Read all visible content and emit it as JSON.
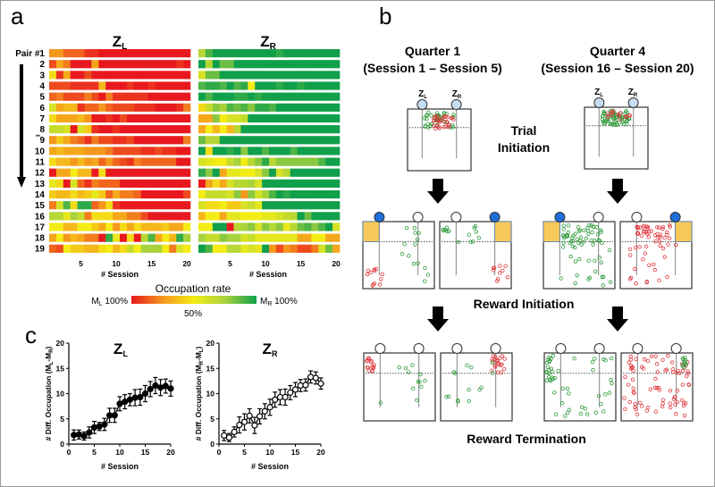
{
  "figure": {
    "panel_a": {
      "letter": "a",
      "left_title": {
        "main": "Z",
        "sub": "L"
      },
      "right_title": {
        "main": "Z",
        "sub": "R"
      },
      "row_labels": [
        "Pair #1",
        "2",
        "3",
        "4",
        "5",
        "6",
        "7",
        "8",
        "9",
        "10",
        "11",
        "12",
        "13",
        "14",
        "15",
        "16",
        "17",
        "18",
        "19"
      ],
      "row8_marker": "**",
      "xlabel": "# Session",
      "xticks": [
        "5",
        "10",
        "15",
        "20"
      ],
      "colorbar": {
        "title": "Occupation rate",
        "left": {
          "main": "M",
          "sub": "L",
          "rest": " 100%"
        },
        "right": {
          "main": "M",
          "sub": "R",
          "rest": " 100%"
        },
        "mid": "50%",
        "colors": [
          "#e8191e",
          "#f5961d",
          "#f4ec15",
          "#a8d23c",
          "#10a04b"
        ]
      }
    },
    "panel_b": {
      "letter": "b",
      "q1_title": "Quarter 1",
      "q1_range": "(Session 1 – Session 5)",
      "q4_title": "Quarter 4",
      "q4_range": "(Session 16 – Session 20)",
      "zone_left": {
        "main": "Z",
        "sub": "L"
      },
      "zone_right": {
        "main": "Z",
        "sub": "R"
      },
      "trial_initiation_1": "Trial",
      "trial_initiation_2": "Initiation",
      "reward_initiation": "Reward Initiation",
      "reward_termination": "Reward Termination",
      "colors": {
        "port_idle": "#c5dcf2",
        "port_active": "#1e6fd9",
        "reward_zone": "#f7c95a",
        "point_red": "#e0383c",
        "point_green": "#2e9a3a"
      }
    },
    "panel_c": {
      "letter": "c"
    }
  },
  "chart_data": [
    {
      "type": "heatmap",
      "title": {
        "main": "Z",
        "sub": "L"
      },
      "xlabel": "# Session",
      "colorbar_label": "Occupation rate",
      "scale": "0 = M_L 100%, 0.5 = 50%, 1 = M_R 100%",
      "rows": [
        "Pair #1",
        "2",
        "3",
        "4",
        "5",
        "6",
        "7",
        "8",
        "9",
        "10",
        "11",
        "12",
        "13",
        "14",
        "15",
        "16",
        "17",
        "18",
        "19"
      ],
      "sessions": [
        1,
        20
      ],
      "values": [
        [
          0.25,
          0.25,
          0.15,
          0.15,
          0.15,
          0.05,
          0.05,
          0,
          0,
          0,
          0,
          0,
          0,
          0,
          0,
          0,
          0,
          0,
          0,
          0
        ],
        [
          0.1,
          0.3,
          0.2,
          0,
          0,
          0,
          0.3,
          0,
          0,
          0,
          0,
          0,
          0,
          0,
          0,
          0,
          0,
          0,
          0.05,
          0
        ],
        [
          0.45,
          0.05,
          0.3,
          0,
          0,
          0.1,
          0,
          0,
          0,
          0,
          0,
          0,
          0,
          0,
          0,
          0,
          0,
          0,
          0,
          0
        ],
        [
          0.1,
          0.1,
          0.1,
          0.05,
          0.05,
          0.05,
          0.05,
          0.35,
          0,
          0,
          0,
          0.05,
          0,
          0,
          0.05,
          0,
          0,
          0,
          0,
          0
        ],
        [
          0.15,
          0.2,
          0.1,
          0.1,
          0.1,
          0.2,
          0.1,
          0,
          0.2,
          0.05,
          0.05,
          0.05,
          0.05,
          0.05,
          0,
          0,
          0,
          0,
          0,
          0
        ],
        [
          0.6,
          0.3,
          0.35,
          0.35,
          0.05,
          0.15,
          0.15,
          0.25,
          0.15,
          0.1,
          0.1,
          0.1,
          0.05,
          0.05,
          0.05,
          0,
          0,
          0,
          0.05,
          0.2
        ],
        [
          0.45,
          0.3,
          0.3,
          0.3,
          0.35,
          0.25,
          0,
          0,
          0.05,
          0,
          0.1,
          0,
          0,
          0,
          0,
          0,
          0,
          0,
          0,
          0
        ],
        [
          0.65,
          0.65,
          0.6,
          0,
          0.6,
          0.4,
          0.05,
          0,
          0,
          0.05,
          0,
          0,
          0,
          0,
          0,
          0,
          0,
          0,
          0,
          0
        ],
        [
          0.25,
          0.4,
          0.3,
          0.2,
          0.15,
          0.05,
          0.2,
          0.1,
          0.1,
          0.05,
          0.05,
          0.1,
          0,
          0,
          0,
          0,
          0,
          0,
          0,
          0.2
        ],
        [
          0.3,
          0.35,
          0.3,
          0.3,
          0.3,
          0.25,
          0.25,
          0.25,
          0.2,
          0.1,
          0.1,
          0.1,
          0.1,
          0.05,
          0.05,
          0.1,
          0.05,
          0.05,
          0,
          0
        ],
        [
          0.45,
          0.35,
          0.35,
          0.25,
          0.35,
          0.25,
          0.3,
          0.15,
          0.25,
          0.15,
          0.1,
          0.05,
          0.2,
          0.15,
          0.15,
          0.15,
          0.15,
          0.15,
          0,
          0
        ],
        [
          0,
          0.3,
          0.3,
          0.5,
          0.35,
          0.35,
          0,
          0.45,
          0,
          0,
          0,
          0,
          0,
          0,
          0,
          0,
          0,
          0,
          0,
          0
        ],
        [
          0.55,
          0.45,
          0,
          0.6,
          0.15,
          0.05,
          0.2,
          0.15,
          0.15,
          0.15,
          0,
          0,
          0,
          0,
          0,
          0,
          0,
          0,
          0,
          0
        ],
        [
          0.4,
          0.35,
          0.35,
          0.45,
          0.35,
          0.4,
          0.55,
          0.4,
          0.15,
          0.3,
          0.2,
          0.2,
          0.15,
          0,
          0,
          0,
          0,
          0,
          0,
          0.1
        ],
        [
          0.2,
          0.6,
          0.9,
          0.45,
          0.95,
          0.95,
          0.15,
          0.25,
          0.45,
          0.05,
          0,
          0,
          0,
          0,
          0,
          0,
          0,
          0,
          0,
          0
        ],
        [
          0.7,
          0.7,
          0.55,
          0.75,
          0.65,
          0.2,
          0.45,
          0.45,
          0.45,
          0.3,
          0.3,
          0.2,
          0.2,
          0.1,
          0,
          0,
          0,
          0,
          0,
          0
        ],
        [
          0.5,
          0.5,
          0.35,
          0.35,
          0.5,
          0.5,
          0.4,
          0.3,
          0.5,
          0.25,
          0.45,
          0.3,
          0.45,
          0.35,
          0.35,
          0.35,
          0.4,
          0.3,
          0.3,
          0.5
        ],
        [
          0.3,
          0.5,
          0.25,
          0.35,
          0.3,
          0.2,
          0.2,
          0,
          0.95,
          0.55,
          0,
          0.45,
          0,
          0.7,
          0.9,
          0.3,
          0.5,
          0.35,
          0.95,
          0.75
        ],
        [
          0.15,
          0.1,
          0.5,
          0.4,
          0.4,
          0.35,
          0.35,
          0.45,
          0.5,
          0.35,
          0.45,
          0.65,
          0.5,
          0.75,
          0.75,
          0.75,
          0.5,
          0.2,
          0.6,
          0.5
        ]
      ]
    },
    {
      "type": "heatmap",
      "title": {
        "main": "Z",
        "sub": "R"
      },
      "xlabel": "# Session",
      "colorbar_label": "Occupation rate",
      "scale": "0 = M_L 100%, 0.5 = 50%, 1 = M_R 100%",
      "rows": [
        "Pair #1",
        "2",
        "3",
        "4",
        "5",
        "6",
        "7",
        "8",
        "9",
        "10",
        "11",
        "12",
        "13",
        "14",
        "15",
        "16",
        "17",
        "18",
        "19"
      ],
      "sessions": [
        1,
        20
      ],
      "values": [
        [
          0.7,
          0.9,
          1,
          1,
          1,
          1,
          1,
          1,
          1,
          1,
          1,
          0.95,
          1,
          1,
          1,
          1,
          1,
          1,
          1,
          1
        ],
        [
          1,
          0.7,
          1,
          0.85,
          0.85,
          1,
          1,
          1,
          1,
          1,
          1,
          1,
          1,
          1,
          1,
          1,
          1,
          1,
          1,
          1
        ],
        [
          0.6,
          0.85,
          0.85,
          1,
          1,
          1,
          1,
          1,
          1,
          1,
          1,
          1,
          1,
          1,
          1,
          1,
          1,
          1,
          1,
          1
        ],
        [
          0.9,
          0.95,
          0.95,
          0.9,
          1,
          0.9,
          0.95,
          0.5,
          1,
          1,
          1,
          0.95,
          1,
          1,
          0.95,
          1,
          1,
          1,
          1,
          1
        ],
        [
          1,
          0.9,
          1,
          1,
          1,
          0.95,
          0.95,
          1,
          0.95,
          1,
          1,
          1,
          1,
          1,
          1,
          1,
          1,
          1,
          1,
          1
        ],
        [
          0.45,
          0.65,
          0.8,
          0.75,
          0.9,
          0.85,
          0.9,
          0.8,
          0.95,
          0.95,
          0.9,
          1,
          1,
          1,
          1,
          1,
          1,
          1,
          1,
          1
        ],
        [
          0.3,
          0.3,
          0.8,
          0.5,
          0.6,
          0.6,
          0.65,
          1,
          1,
          1,
          1,
          1,
          1,
          1,
          1,
          1,
          1,
          1,
          1,
          1
        ],
        [
          0.3,
          0.5,
          0.35,
          0.5,
          0.35,
          0.7,
          1,
          1,
          1,
          1,
          1,
          1,
          1,
          1,
          1,
          1,
          1,
          1,
          1,
          1
        ],
        [
          0.85,
          0.7,
          0.7,
          1,
          1,
          1,
          1,
          1,
          1,
          1,
          1,
          1,
          1,
          1,
          1,
          1,
          1,
          1,
          1,
          1
        ],
        [
          1,
          0.45,
          1,
          1,
          0.95,
          1,
          0.8,
          1,
          1,
          0.9,
          1,
          1,
          1,
          0.9,
          1,
          1,
          1,
          1,
          1,
          1
        ],
        [
          0.6,
          0.55,
          0.5,
          0.5,
          0.65,
          0.75,
          0.5,
          0.7,
          0.8,
          0.95,
          0.7,
          0.8,
          0.8,
          0.8,
          0.8,
          0.8,
          0.8,
          0.9,
          1,
          1
        ],
        [
          0.95,
          0.8,
          1,
          0.3,
          0.55,
          0.55,
          0.5,
          0.5,
          0.6,
          0.8,
          1,
          0.6,
          0.7,
          1,
          1,
          1,
          1,
          1,
          1,
          1
        ],
        [
          0,
          0.3,
          0.45,
          0.3,
          0.6,
          0.7,
          0.7,
          0.75,
          0.6,
          1,
          1,
          1,
          1,
          1,
          1,
          1,
          1,
          1,
          1,
          1
        ],
        [
          0.5,
          0.65,
          0.65,
          0.65,
          0.6,
          0.8,
          0.25,
          0.8,
          0.6,
          0.75,
          0.9,
          1,
          0.95,
          1,
          1,
          1,
          1,
          1,
          1,
          1
        ],
        [
          0.6,
          0.45,
          0.45,
          0.5,
          0.4,
          0.4,
          0.6,
          0.65,
          0.55,
          1,
          1,
          1,
          1,
          1,
          1,
          1,
          1,
          1,
          1,
          1
        ],
        [
          0.35,
          0.5,
          0.5,
          0.3,
          0.55,
          0.55,
          0.5,
          0.5,
          0.5,
          0.55,
          0.55,
          0.6,
          0.65,
          0.7,
          1,
          0.85,
          1,
          1,
          1,
          1
        ],
        [
          0.5,
          0.5,
          1,
          1,
          0,
          0.7,
          0.75,
          0.8,
          0.6,
          0.8,
          0.7,
          0.8,
          0.55,
          0.7,
          0.85,
          0.9,
          0.8,
          0.9,
          1,
          0.6
        ],
        [
          0.75,
          0.65,
          0.65,
          0.8,
          0.75,
          0.75,
          0.6,
          0.65,
          0.55,
          0.55,
          0.55,
          0.55,
          0.55,
          0.55,
          0.3,
          0.3,
          0.5,
          0.5,
          0.3,
          0.3
        ],
        [
          1,
          0.9,
          0.5,
          0.5,
          0.7,
          0.7,
          0.55,
          0.6,
          0.55,
          1,
          0.25,
          0.1,
          0.25,
          0.2,
          0.1,
          0.1,
          0.2,
          0.6,
          0.85,
          0.3
        ]
      ]
    },
    {
      "type": "line",
      "title": {
        "main": "Z",
        "sub": "L"
      },
      "marker": "filled-circle",
      "xlabel": "# Session",
      "ylabel": {
        "a": "# Diff. Occupation (M",
        "s1": "L",
        "b": "-M",
        "s2": "R",
        "c": ")"
      },
      "xlim": [
        0,
        20
      ],
      "ylim": [
        0,
        20
      ],
      "xticks": [
        0,
        5,
        10,
        15,
        20
      ],
      "yticks": [
        0,
        5,
        10,
        15,
        20
      ],
      "x": [
        1,
        2,
        3,
        4,
        5,
        6,
        7,
        8,
        9,
        10,
        11,
        12,
        13,
        14,
        15,
        16,
        17,
        18,
        19,
        20
      ],
      "y": [
        1.8,
        1.9,
        1.6,
        2.3,
        3.3,
        3.5,
        3.9,
        5.7,
        5.7,
        8.0,
        8.4,
        8.8,
        9.2,
        9.3,
        10.0,
        10.9,
        11.6,
        11.2,
        11.5,
        11.0
      ],
      "err": [
        1.0,
        0.9,
        0.8,
        1.1,
        1.2,
        0.8,
        1.2,
        1.4,
        1.4,
        1.4,
        1.4,
        1.2,
        1.6,
        1.6,
        1.6,
        1.5,
        1.6,
        1.6,
        1.4,
        1.5
      ]
    },
    {
      "type": "line",
      "title": {
        "main": "Z",
        "sub": "R"
      },
      "marker": "open-circle",
      "xlabel": "# Session",
      "ylabel": {
        "a": "# Diff. Occupation (M",
        "s1": "R",
        "b": "-M",
        "s2": "L",
        "c": ")"
      },
      "xlim": [
        0,
        20
      ],
      "ylim": [
        0,
        20
      ],
      "xticks": [
        0,
        5,
        10,
        15,
        20
      ],
      "yticks": [
        0,
        5,
        10,
        15,
        20
      ],
      "x": [
        1,
        2,
        3,
        4,
        5,
        6,
        7,
        8,
        9,
        10,
        11,
        12,
        13,
        14,
        15,
        16,
        17,
        18,
        19,
        20
      ],
      "y": [
        1.7,
        1.3,
        2.4,
        3.8,
        4.4,
        5.6,
        3.7,
        5.5,
        6.5,
        7.3,
        8.8,
        9.3,
        9.3,
        10.2,
        10.8,
        11.6,
        11.7,
        13.3,
        13.1,
        12.0
      ],
      "err": [
        1.0,
        0.8,
        1.0,
        1.6,
        1.6,
        1.4,
        1.6,
        1.5,
        1.5,
        1.6,
        1.5,
        1.5,
        1.6,
        1.4,
        1.4,
        1.2,
        1.2,
        1.2,
        1.2,
        1.1
      ]
    }
  ]
}
